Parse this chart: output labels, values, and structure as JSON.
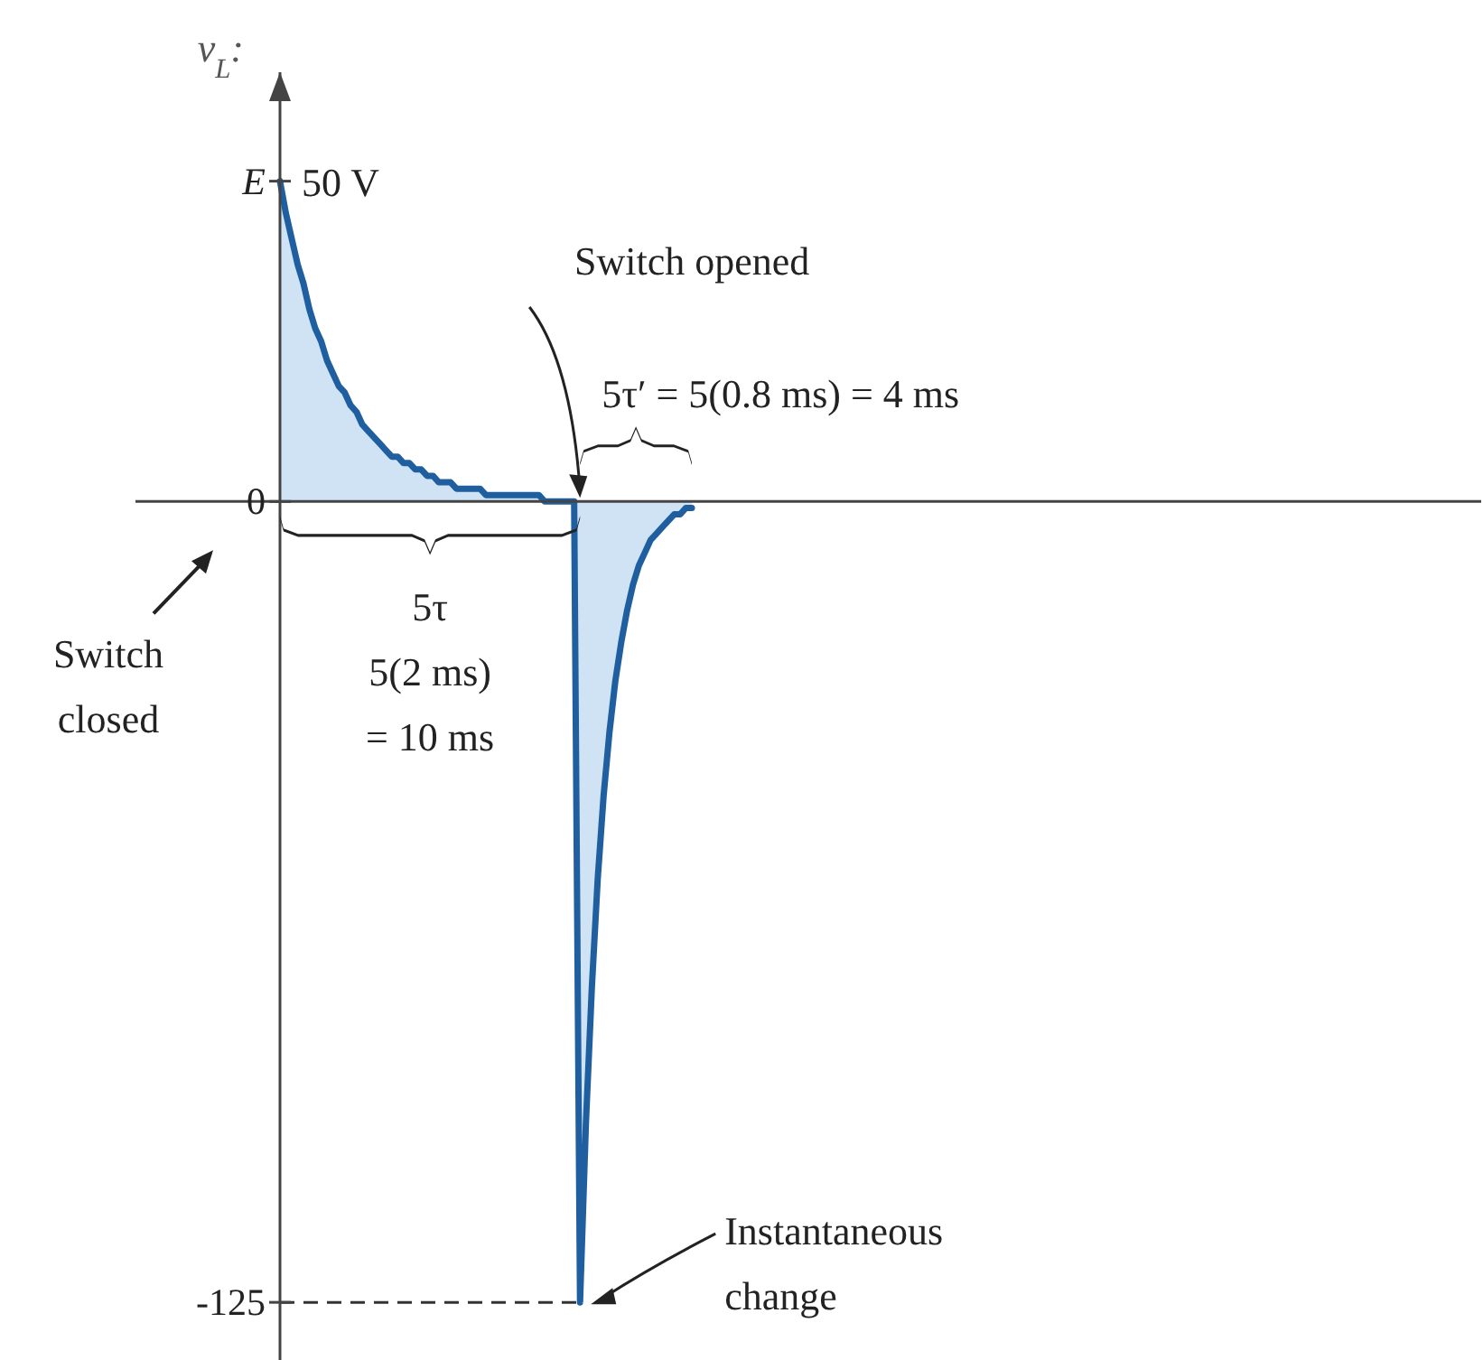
{
  "chart_data": {
    "type": "area",
    "ylabel": "v$_{L}$:",
    "categories": [
      null,
      null,
      null,
      null,
      null,
      null,
      null,
      null,
      null,
      null,
      null,
      null,
      null,
      null,
      null,
      null,
      null,
      null,
      null,
      null,
      null,
      null,
      null,
      null,
      null,
      null,
      null,
      null,
      null,
      null,
      null,
      null,
      null,
      null,
      null,
      null,
      null,
      null,
      null,
      null,
      null,
      null,
      null,
      null,
      null,
      null,
      null,
      null,
      null,
      null,
      null,
      null,
      null,
      null,
      null,
      null,
      null,
      null,
      null,
      null,
      null,
      null,
      null,
      null,
      null,
      null,
      null,
      null,
      null,
      null,
      null
    ],
    "series": [
      {
        "color": "#1f5fa0",
        "values": [
          50,
          45,
          41,
          37,
          34,
          30,
          27,
          25,
          22,
          20,
          18,
          17,
          15,
          14,
          12,
          11,
          10,
          9,
          8,
          7,
          7,
          6,
          6,
          5,
          5,
          4,
          4,
          3,
          3,
          3,
          2,
          2,
          2,
          2,
          2,
          1,
          1,
          1,
          1,
          1,
          1,
          1,
          1,
          1,
          1,
          0,
          0,
          0,
          0,
          0,
          0,
          -125,
          -97,
          -76,
          -59,
          -46,
          -36,
          -28,
          -22,
          -17,
          -13,
          -10,
          -8,
          -6,
          -5,
          -4,
          -3,
          -2,
          -2,
          -1,
          -1
        ]
      }
    ],
    "ylim": [
      -134,
      67
    ],
    "yticks": [
      {
        "value": 50,
        "label": "E"
      },
      {
        "value": 0,
        "label": "0"
      },
      {
        "value": -125,
        "label": "-125"
      }
    ],
    "ref_lines": [
      {
        "axis": "y",
        "value": -125,
        "line_style": "dashed",
        "color": "#333333"
      }
    ],
    "annotations": [
      "50 V",
      "Switch opened",
      "5τ′ = 5(0.8 ms) = 4 ms",
      "5τ\n5(2 ms)\n= 10 ms",
      "Switch\nclosed",
      "Instantaneous\nchange"
    ]
  }
}
